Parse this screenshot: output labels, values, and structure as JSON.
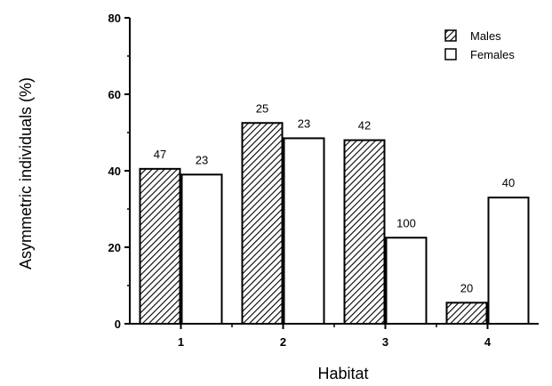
{
  "chart_data": {
    "type": "bar",
    "xlabel": "Habitat",
    "ylabel": "Asymmetric individuals (%)",
    "categories": [
      "1",
      "2",
      "3",
      "4"
    ],
    "ylim": [
      0,
      80
    ],
    "yticks": [
      0,
      20,
      40,
      60,
      80
    ],
    "grid": false,
    "legend_position": "top-right",
    "series": [
      {
        "name": "Males",
        "fill": "hatched",
        "values": [
          40.5,
          52.5,
          48,
          5.5
        ],
        "labels": [
          "47",
          "25",
          "42",
          "20"
        ]
      },
      {
        "name": "Females",
        "fill": "white",
        "values": [
          39,
          48.5,
          22.5,
          33
        ],
        "labels": [
          "23",
          "23",
          "100",
          "40"
        ]
      }
    ],
    "colors": {
      "stroke": "#000000",
      "background": "#ffffff"
    }
  }
}
